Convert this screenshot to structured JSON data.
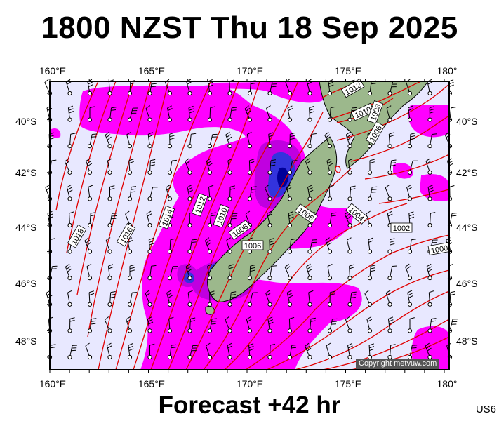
{
  "title": "1800 NZST Thu 18 Sep 2025",
  "footer": "Forecast +42 hr",
  "model": "US6",
  "copyright": "Copyright metvuw.com",
  "lon_ticks": [
    "160°E",
    "165°E",
    "170°E",
    "175°E",
    "180°"
  ],
  "lat_ticks": [
    "40°S",
    "42°S",
    "44°S",
    "46°S",
    "48°S"
  ],
  "isobar_labels": [
    "1012",
    "1010",
    "1008",
    "1006",
    "1018",
    "1016",
    "1014",
    "1012",
    "1010",
    "1008",
    "1006",
    "1006",
    "1004",
    "1002",
    "1000"
  ],
  "colors": {
    "background_sea": "#e8e8ff",
    "isobar": "#e00000",
    "rain_light": "#ff00ff",
    "rain_moderate": "#c000e0",
    "rain_heavy": "#3333dd",
    "rain_very_heavy": "#000099",
    "land": "#9cb88c"
  }
}
